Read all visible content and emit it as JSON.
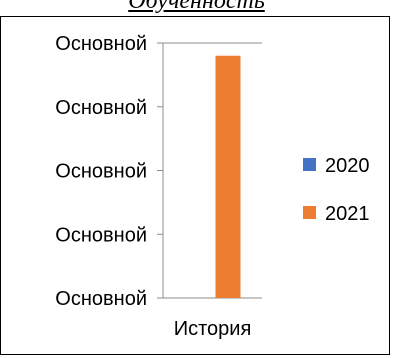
{
  "header": {
    "title": "Обученность"
  },
  "chart_data": {
    "type": "bar",
    "categories": [
      "История"
    ],
    "series": [
      {
        "name": "2020",
        "values": [
          0
        ],
        "color": "#4472C4"
      },
      {
        "name": "2021",
        "values": [
          3.8
        ],
        "color": "#ED7D31"
      }
    ],
    "ylim": [
      0,
      4
    ],
    "yticks": [
      0,
      1,
      2,
      3,
      4
    ],
    "ytick_labels": [
      "Основной",
      "Основной",
      "Основной",
      "Основной",
      "Основной"
    ],
    "legend_position": "right",
    "grid": false
  }
}
